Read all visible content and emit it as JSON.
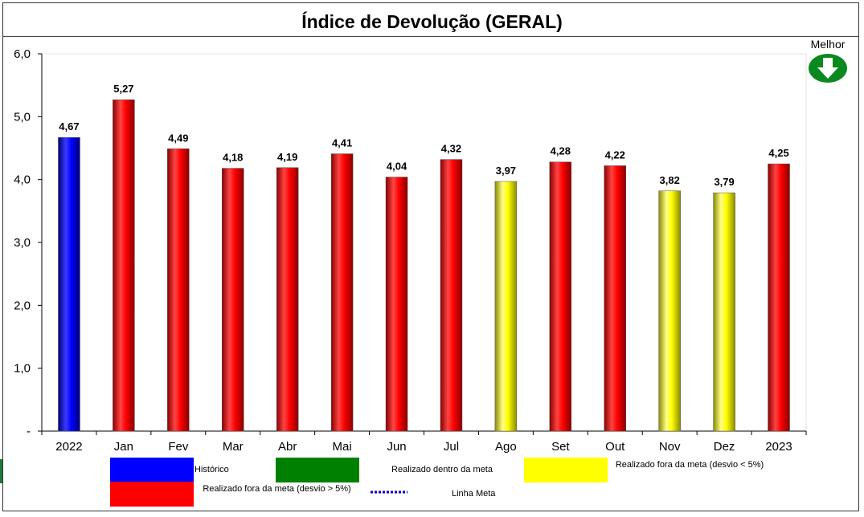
{
  "chart_data": {
    "type": "bar",
    "title": "Índice de Devolução (GERAL)",
    "categories": [
      "2022",
      "Jan",
      "Fev",
      "Mar",
      "Abr",
      "Mai",
      "Jun",
      "Jul",
      "Ago",
      "Set",
      "Out",
      "Nov",
      "Dez",
      "2023"
    ],
    "values": [
      4.67,
      5.27,
      4.49,
      4.18,
      4.19,
      4.41,
      4.04,
      4.32,
      3.97,
      4.28,
      4.22,
      3.82,
      3.79,
      4.25
    ],
    "value_labels": [
      "4,67",
      "5,27",
      "4,49",
      "4,18",
      "4,19",
      "4,41",
      "4,04",
      "4,32",
      "3,97",
      "4,28",
      "4,22",
      "3,82",
      "3,79",
      "4,25"
    ],
    "bar_status": [
      "historico",
      "fora5",
      "fora5",
      "fora5",
      "fora5",
      "fora5",
      "fora5",
      "fora5",
      "foraMenos5",
      "fora5",
      "fora5",
      "foraMenos5",
      "foraMenos5",
      "fora5"
    ],
    "ylim": [
      0,
      6
    ],
    "yticks": [
      0,
      1,
      2,
      3,
      4,
      5,
      6
    ],
    "ytick_labels": [
      "-",
      "1,0",
      "2,0",
      "3,0",
      "4,0",
      "5,0",
      "6,0"
    ],
    "xlabel": "",
    "ylabel": "",
    "grid": false,
    "colors": {
      "historico": "#0000ff",
      "dentro": "#008000",
      "foraMenos5": "#ffff00",
      "fora5": "#ff0000"
    }
  },
  "better_indicator": {
    "label": "Melhor",
    "icon": "down-arrow-icon",
    "color": "#0a8a1e"
  },
  "legend": {
    "historico": "Histórico",
    "dentro": "Realizado dentro da meta",
    "foraMenos5": "Realizado fora da meta (desvio < 5%)",
    "fora5": "Realizado fora da meta (desvio > 5%)",
    "linha_meta": "Linha Meta",
    "linha_meta_color": "#0000cc"
  }
}
